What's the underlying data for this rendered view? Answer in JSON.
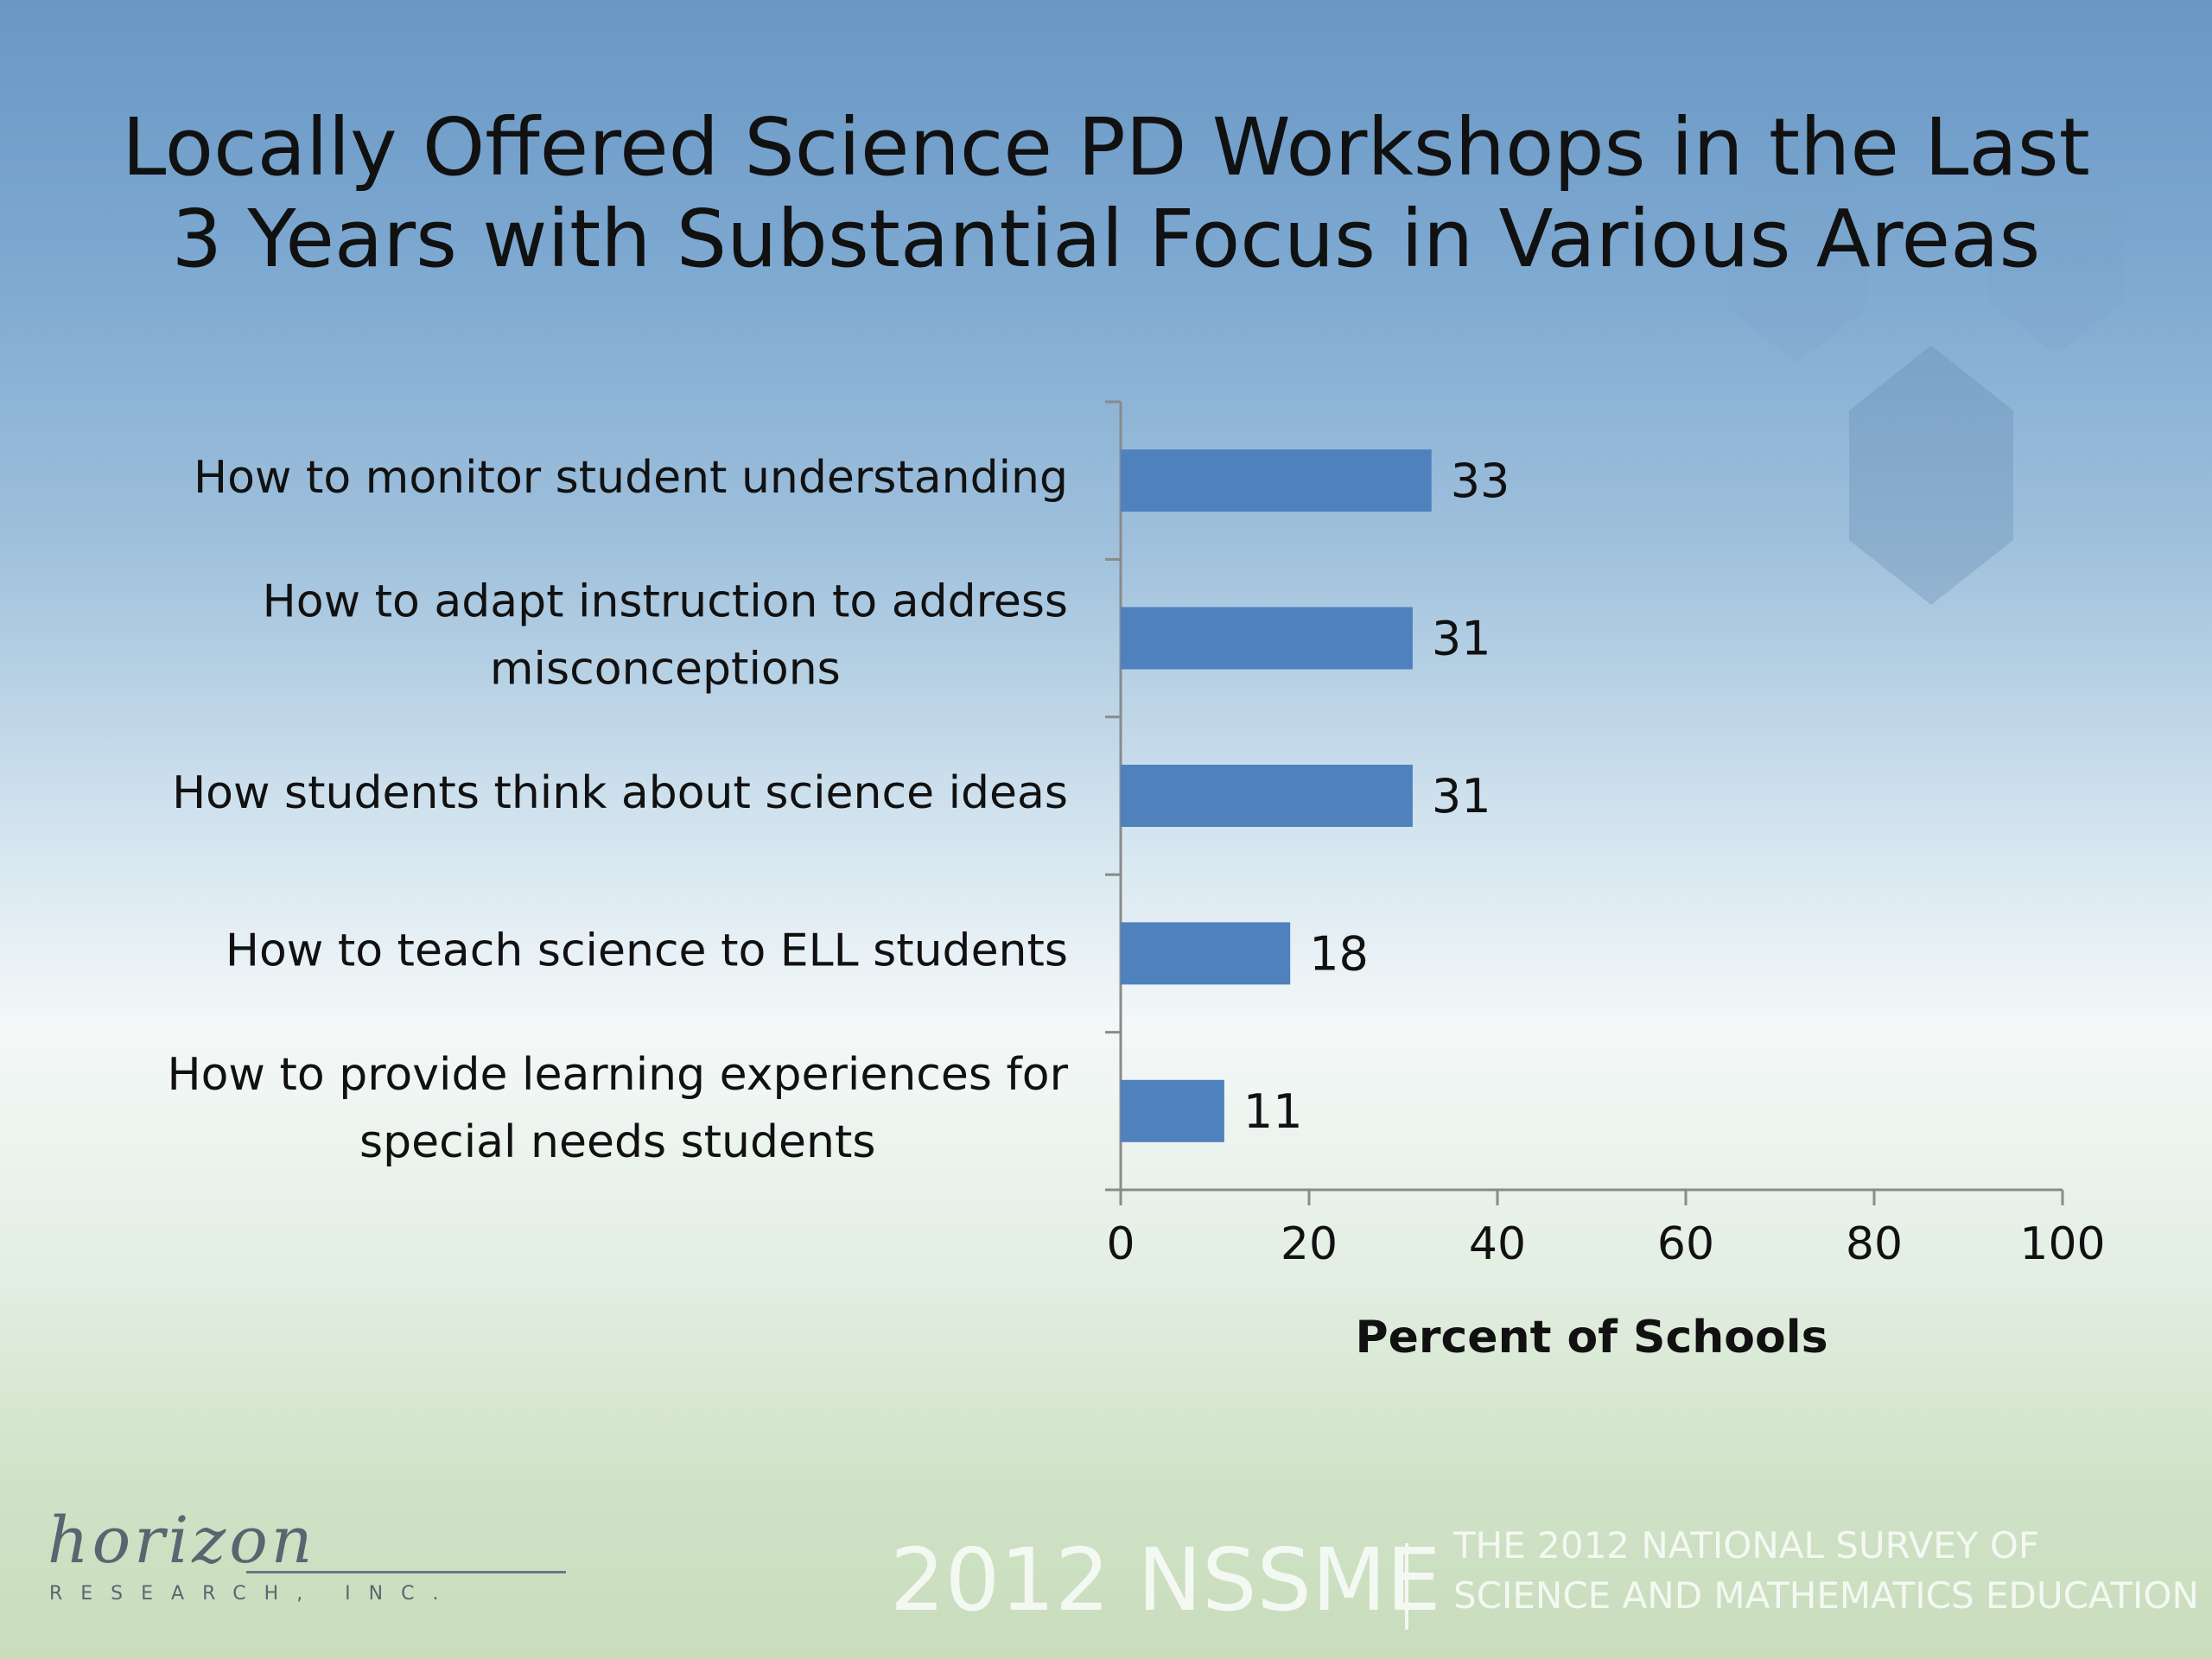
{
  "title_lines": [
    "Locally Offered Science PD Workshops in the Last",
    "3 Years with Substantial Focus in Various Areas"
  ],
  "chart_data": {
    "type": "bar",
    "orientation": "horizontal",
    "categories": [
      [
        "How to monitor student understanding"
      ],
      [
        "How to adapt instruction to address",
        "misconceptions"
      ],
      [
        "How students think about science ideas"
      ],
      [
        "How to teach science to ELL students"
      ],
      [
        "How to provide learning experiences for",
        "special needs students"
      ]
    ],
    "values": [
      33,
      31,
      31,
      18,
      11
    ],
    "xlabel": "Percent of Schools",
    "xlim": [
      0,
      100
    ],
    "xticks": [
      "0",
      "20",
      "40",
      "60",
      "80",
      "100"
    ],
    "bar_color": "#4f81bd",
    "grid": false
  },
  "footer": {
    "logo_script": "horizon",
    "logo_sub": "RESEARCH, INC.",
    "brand": "2012 NSSME",
    "survey_lines": [
      "THE 2012 NATIONAL SURVEY OF",
      "SCIENCE AND MATHEMATICS EDUCATION"
    ]
  }
}
